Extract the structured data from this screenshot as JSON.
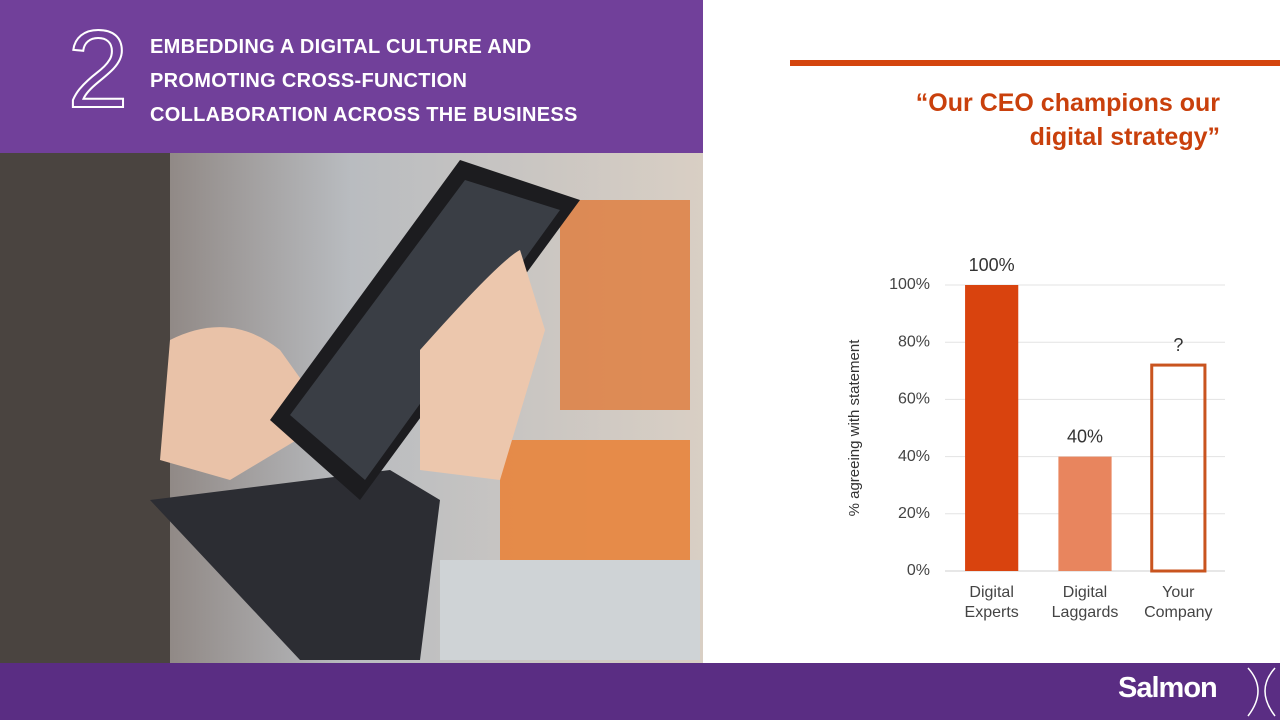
{
  "header": {
    "number": "2",
    "title_lines": [
      "EMBEDDING A DIGITAL CULTURE AND",
      "PROMOTING CROSS-FUNCTION",
      "COLLABORATION ACROSS THE BUSINESS"
    ]
  },
  "brand": "Salmon",
  "chart_data": {
    "type": "bar",
    "title": "“Our CEO champions our digital strategy”",
    "y_label": "% agreeing with statement",
    "categories": [
      "Digital Experts",
      "Digital Laggards",
      "Your Company"
    ],
    "values": [
      100,
      40,
      72
    ],
    "value_labels": [
      "100%",
      "40%",
      "?"
    ],
    "colors": [
      "#d9430e",
      "#e8855e",
      "#c9541f"
    ],
    "outlined": [
      false,
      false,
      true
    ],
    "ylim": [
      0,
      100
    ],
    "yticks": [
      {
        "value": 0,
        "label": "0%"
      },
      {
        "value": 20,
        "label": "20%"
      },
      {
        "value": 40,
        "label": "40%"
      },
      {
        "value": 60,
        "label": "60%"
      },
      {
        "value": 80,
        "label": "80%"
      },
      {
        "value": 100,
        "label": "100%"
      }
    ],
    "grid": true
  }
}
